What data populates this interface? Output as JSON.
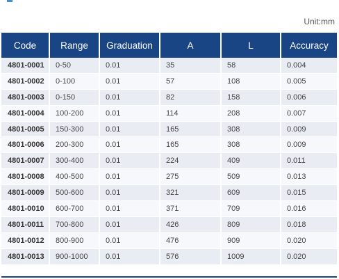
{
  "unit_label": "Unit:mm",
  "table": {
    "headers": [
      "Code",
      "Range",
      "Graduation",
      "A",
      "L",
      "Accuracy"
    ],
    "rows": [
      [
        "4801-0001",
        "0-50",
        "0.01",
        "35",
        "58",
        "0.004"
      ],
      [
        "4801-0002",
        "0-100",
        "0.01",
        "57",
        "108",
        "0.005"
      ],
      [
        "4801-0003",
        "0-150",
        "0.01",
        "82",
        "158",
        "0.006"
      ],
      [
        "4801-0004",
        "100-200",
        "0.01",
        "114",
        "208",
        "0.007"
      ],
      [
        "4801-0005",
        "150-300",
        "0.01",
        "165",
        "308",
        "0.009"
      ],
      [
        "4801-0006",
        "200-300",
        "0.01",
        "165",
        "308",
        "0.009"
      ],
      [
        "4801-0007",
        "300-400",
        "0.01",
        "224",
        "409",
        "0.011"
      ],
      [
        "4801-0008",
        "400-500",
        "0.01",
        "275",
        "509",
        "0.013"
      ],
      [
        "4801-0009",
        "500-600",
        "0.01",
        "321",
        "609",
        "0.015"
      ],
      [
        "4801-0010",
        "600-700",
        "0.01",
        "371",
        "709",
        "0.016"
      ],
      [
        "4801-0011",
        "700-800",
        "0.01",
        "426",
        "809",
        "0.018"
      ],
      [
        "4801-0012",
        "800-900",
        "0.01",
        "476",
        "909",
        "0.020"
      ],
      [
        "4801-0013",
        "900-1000",
        "0.01",
        "576",
        "1009",
        "0.020"
      ]
    ]
  }
}
